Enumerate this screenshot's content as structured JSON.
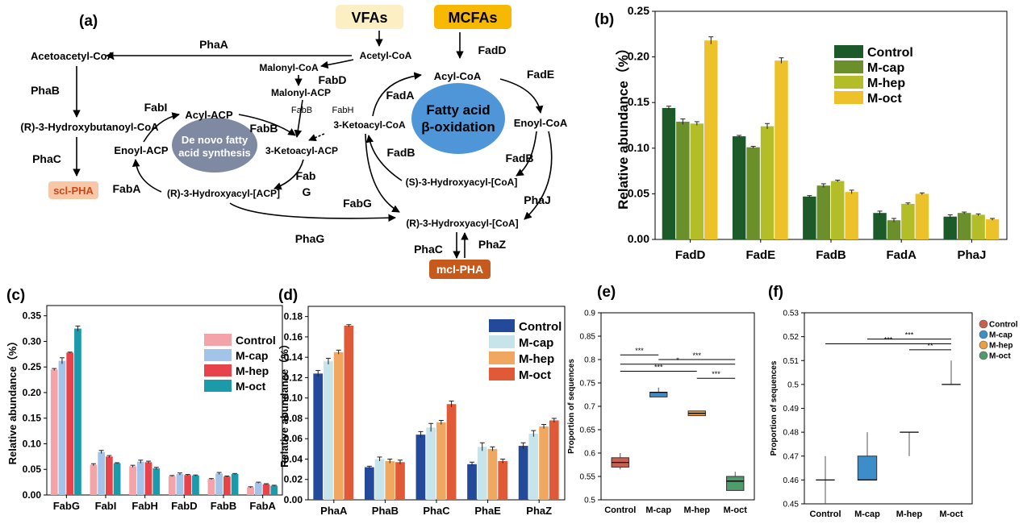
{
  "pathway": {
    "panel_label": "(a)",
    "sources": {
      "vfas": "VFAs",
      "mcfas": "MCFAs"
    },
    "metabolites": {
      "acetoacetyl_coa": "Acetoacetyl-CoA",
      "acetyl_coa": "Acetyl-CoA",
      "malonyl_coa": "Malonyl-CoA",
      "malonyl_acp": "Malonyl-ACP",
      "hydroxybutanoyl_coa": "(R)-3-Hydroxybutanoyl-CoA",
      "acyl_acp": "Acyl-ACP",
      "enoyl_acp": "Enoyl-ACP",
      "ketoacyl_acp": "3-Ketoacyl-ACP",
      "ketoacyl_coa": "3-Ketoacyl-CoA",
      "hydroxyacyl_acp": "(R)-3-Hydroxyacyl-[ACP]",
      "acyl_coa": "Acyl-CoA",
      "enoyl_coa": "Enoyl-CoA",
      "s_hydroxyacyl_coa": "(S)-3-Hydroxyacyl-[CoA]",
      "r_hydroxyacyl_coa": "(R)-3-Hydroxyacyl-[CoA]"
    },
    "products": {
      "scl_pha": "scl-PHA",
      "mcl_pha": "mcl-PHA"
    },
    "cycles": {
      "denovo_line1": "De novo fatty",
      "denovo_line2": "acid synthesis",
      "beta_line1": "Fatty acid",
      "beta_line2": "β-oxidation"
    },
    "enzymes": {
      "phaA": "PhaA",
      "phaB": "PhaB",
      "phaC_left": "PhaC",
      "fabA": "FabA",
      "fabI": "FabI",
      "fabB_left": "FabB",
      "fabD": "FabD",
      "fabB_small": "FabB",
      "fabH_small": "FabH",
      "fabG_1": "Fab",
      "fabG_2": "G",
      "fabG_right": "FabG",
      "phaG": "PhaG",
      "fadD": "FadD",
      "fadA": "FadA",
      "fadE": "FadE",
      "fadB_left": "FadB",
      "fadB_right": "FadB",
      "phaJ": "PhaJ",
      "phaC_bottom": "PhaC",
      "phaZ": "PhaZ"
    }
  },
  "chart_data": [
    {
      "id": "b",
      "panel_label": "(b)",
      "type": "bar",
      "categories": [
        "FadD",
        "FadE",
        "FadB",
        "FadA",
        "PhaJ"
      ],
      "series": [
        {
          "name": "Control",
          "color": "#1d5a2a",
          "values": [
            0.144,
            0.113,
            0.047,
            0.029,
            0.025
          ],
          "errors": [
            0.002,
            0.001,
            0.001,
            0.002,
            0.002
          ]
        },
        {
          "name": "M-cap",
          "color": "#6b8f2a",
          "values": [
            0.129,
            0.101,
            0.059,
            0.021,
            0.029
          ],
          "errors": [
            0.003,
            0.001,
            0.002,
            0.002,
            0.001
          ]
        },
        {
          "name": "M-hep",
          "color": "#b3bd28",
          "values": [
            0.127,
            0.124,
            0.064,
            0.039,
            0.027
          ],
          "errors": [
            0.002,
            0.003,
            0.001,
            0.001,
            0.001
          ]
        },
        {
          "name": "M-oct",
          "color": "#ecc129",
          "values": [
            0.218,
            0.196,
            0.052,
            0.05,
            0.022
          ],
          "errors": [
            0.004,
            0.003,
            0.002,
            0.001,
            0.001
          ]
        }
      ],
      "ylim": [
        0,
        0.25
      ],
      "yticks": [
        "0.00",
        "0.05",
        "0.10",
        "0.15",
        "0.20",
        "0.25"
      ],
      "ylabel": "Relative abundance（%）",
      "legend": "top-right"
    },
    {
      "id": "c",
      "panel_label": "(c)",
      "type": "bar",
      "categories": [
        "FabG",
        "FabI",
        "FabH",
        "FabD",
        "FabB",
        "FabA"
      ],
      "series": [
        {
          "name": "Control",
          "color": "#f4a3a8",
          "values": [
            0.245,
            0.059,
            0.056,
            0.037,
            0.031,
            0.015
          ],
          "errors": [
            0.002,
            0.002,
            0.002,
            0.001,
            0.001,
            0.001
          ]
        },
        {
          "name": "M-cap",
          "color": "#a3c3e8",
          "values": [
            0.262,
            0.084,
            0.065,
            0.041,
            0.042,
            0.024
          ],
          "errors": [
            0.006,
            0.003,
            0.003,
            0.002,
            0.002,
            0.001
          ]
        },
        {
          "name": "M-hep",
          "color": "#e8434a",
          "values": [
            0.278,
            0.075,
            0.064,
            0.039,
            0.036,
            0.021
          ],
          "errors": [
            0.001,
            0.002,
            0.002,
            0.001,
            0.001,
            0.001
          ]
        },
        {
          "name": "M-oct",
          "color": "#1b9aaa",
          "values": [
            0.325,
            0.062,
            0.052,
            0.038,
            0.041,
            0.018
          ],
          "errors": [
            0.005,
            0.001,
            0.002,
            0.001,
            0.001,
            0.001
          ]
        }
      ],
      "ylim": [
        0,
        0.37
      ],
      "yticks": [
        "0.00",
        "0.05",
        "0.10",
        "0.15",
        "0.20",
        "0.25",
        "0.30",
        "0.35"
      ],
      "ylabel": "Relative abundance（%）",
      "legend": "top-right"
    },
    {
      "id": "d",
      "panel_label": "(d)",
      "type": "bar",
      "categories": [
        "PhaA",
        "PhaB",
        "PhaC",
        "PhaE",
        "PhaZ"
      ],
      "series": [
        {
          "name": "Control",
          "color": "#23499b",
          "values": [
            0.124,
            0.032,
            0.064,
            0.035,
            0.053
          ],
          "errors": [
            0.003,
            0.001,
            0.003,
            0.002,
            0.003
          ]
        },
        {
          "name": "M-cap",
          "color": "#c6e4ea",
          "values": [
            0.136,
            0.04,
            0.071,
            0.052,
            0.065
          ],
          "errors": [
            0.003,
            0.002,
            0.004,
            0.004,
            0.003
          ]
        },
        {
          "name": "M-hep",
          "color": "#f0a860",
          "values": [
            0.145,
            0.038,
            0.076,
            0.05,
            0.072
          ],
          "errors": [
            0.002,
            0.002,
            0.002,
            0.002,
            0.002
          ]
        },
        {
          "name": "M-oct",
          "color": "#e05a37",
          "values": [
            0.171,
            0.037,
            0.094,
            0.038,
            0.078
          ],
          "errors": [
            0.001,
            0.002,
            0.003,
            0.002,
            0.002
          ]
        }
      ],
      "ylim": [
        0,
        0.19
      ],
      "yticks": [
        "0.00",
        "0.02",
        "0.04",
        "0.06",
        "0.08",
        "0.10",
        "0.12",
        "0.14",
        "0.16",
        "0.18"
      ],
      "ylabel": "Relative abundance（%）",
      "legend": "top-right"
    },
    {
      "id": "e",
      "panel_label": "(e)",
      "type": "box",
      "categories": [
        "Control",
        "M-cap",
        "M-hep",
        "M-oct"
      ],
      "colors": [
        "#c9604f",
        "#3c8dc8",
        "#eb9d3f",
        "#4f9b6b"
      ],
      "boxes": [
        {
          "whisker_low": 0.565,
          "q1": 0.57,
          "median": 0.58,
          "q3": 0.59,
          "whisker_high": 0.6
        },
        {
          "whisker_low": 0.72,
          "q1": 0.72,
          "median": 0.73,
          "q3": 0.73,
          "whisker_high": 0.74
        },
        {
          "whisker_low": 0.68,
          "q1": 0.68,
          "median": 0.685,
          "q3": 0.69,
          "whisker_high": 0.69
        },
        {
          "whisker_low": 0.52,
          "q1": 0.52,
          "median": 0.54,
          "q3": 0.55,
          "whisker_high": 0.56
        }
      ],
      "ylim": [
        0.5,
        0.9
      ],
      "yticks": [
        "0.5",
        "0.55",
        "0.6",
        "0.65",
        "0.7",
        "0.75",
        "0.8",
        "0.85",
        "0.9"
      ],
      "ylabel": "Proportion of sequences",
      "significance": [
        {
          "from": 0,
          "to": 1,
          "y": 0.81,
          "label": "***"
        },
        {
          "from": 1,
          "to": 3,
          "y": 0.8,
          "label": "***"
        },
        {
          "from": 0,
          "to": 3,
          "y": 0.79,
          "label": "*"
        },
        {
          "from": 0,
          "to": 2,
          "y": 0.775,
          "label": "***"
        },
        {
          "from": 2,
          "to": 3,
          "y": 0.76,
          "label": "***"
        }
      ]
    },
    {
      "id": "f",
      "panel_label": "(f)",
      "type": "box",
      "categories": [
        "Control",
        "M-cap",
        "M-hep",
        "M-oct"
      ],
      "colors": [
        "#c9604f",
        "#3c8dc8",
        "#eb9d3f",
        "#4f9b6b"
      ],
      "boxes": [
        {
          "whisker_low": 0.45,
          "q1": 0.46,
          "median": 0.46,
          "q3": 0.46,
          "whisker_high": 0.47
        },
        {
          "whisker_low": 0.46,
          "q1": 0.46,
          "median": 0.46,
          "q3": 0.47,
          "whisker_high": 0.48
        },
        {
          "whisker_low": 0.47,
          "q1": 0.48,
          "median": 0.48,
          "q3": 0.48,
          "whisker_high": 0.48
        },
        {
          "whisker_low": 0.5,
          "q1": 0.5,
          "median": 0.5,
          "q3": 0.5,
          "whisker_high": 0.51
        }
      ],
      "ylim": [
        0.45,
        0.53
      ],
      "yticks": [
        "0.45",
        "0.46",
        "0.47",
        "0.48",
        "0.49",
        "0.5",
        "0.51",
        "0.52",
        "0.53"
      ],
      "ylabel": "Proportion of sequences",
      "legend_entries": [
        "Control",
        "M-cap",
        "M-hep",
        "M-oct"
      ],
      "significance": [
        {
          "from": 1,
          "to": 3,
          "y": 0.519,
          "label": "***"
        },
        {
          "from": 0,
          "to": 3,
          "y": 0.517,
          "label": "***"
        },
        {
          "from": 2,
          "to": 3,
          "y": 0.5145,
          "label": "**"
        }
      ]
    }
  ]
}
